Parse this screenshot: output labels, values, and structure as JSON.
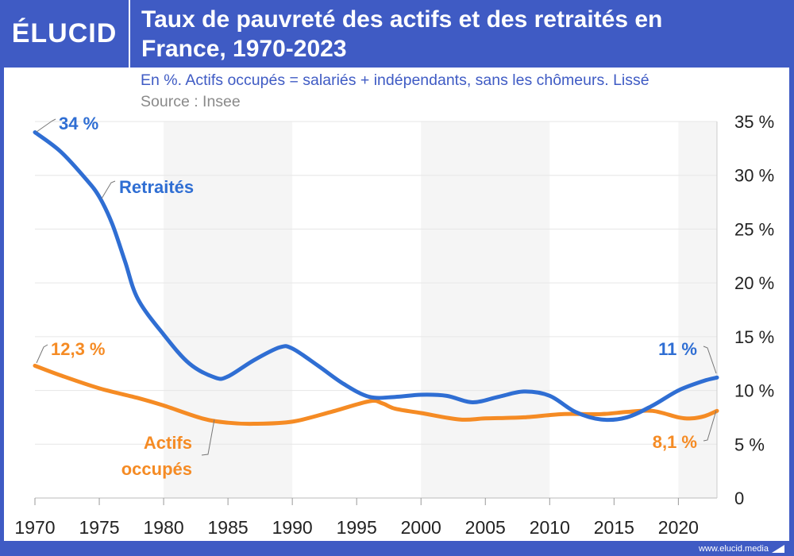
{
  "brand": {
    "logo": "ÉLUCID",
    "footer": "www.elucid.media"
  },
  "chart_data": {
    "type": "line",
    "title": "Taux de pauvreté des actifs et des retraités en France, 1970-2023",
    "subtitle": "En %. Actifs occupés = salariés + indépendants, sans les chômeurs. Lissé",
    "source": "Source : Insee",
    "xlim": [
      1970,
      2023
    ],
    "ylim": [
      0,
      35
    ],
    "x_ticks": [
      1970,
      1975,
      1980,
      1985,
      1990,
      1995,
      2000,
      2005,
      2010,
      2015,
      2020
    ],
    "y_ticks": [
      {
        "v": 0,
        "label": "0"
      },
      {
        "v": 5,
        "label": "5 %"
      },
      {
        "v": 10,
        "label": "10 %"
      },
      {
        "v": 15,
        "label": "15 %"
      },
      {
        "v": 20,
        "label": "20 %"
      },
      {
        "v": 25,
        "label": "25 %"
      },
      {
        "v": 30,
        "label": "30 %"
      },
      {
        "v": 35,
        "label": "35 %"
      }
    ],
    "grid": true,
    "shaded_bands": [
      [
        1980,
        1990
      ],
      [
        2000,
        2010
      ],
      [
        2020,
        2023
      ]
    ],
    "series": [
      {
        "name": "Retraités",
        "label": "Retraités",
        "color": "#2f6ed3",
        "start_label": "34 %",
        "end_label": "11 %",
        "x": [
          1970,
          1972,
          1974,
          1975,
          1976,
          1977,
          1978,
          1980,
          1982,
          1984,
          1985,
          1987,
          1989,
          1990,
          1992,
          1994,
          1996,
          1998,
          2000,
          2002,
          2004,
          2006,
          2008,
          2010,
          2012,
          2014,
          2016,
          2018,
          2020,
          2022,
          2023
        ],
        "y": [
          34,
          32.2,
          29.6,
          28,
          25.5,
          22,
          18.5,
          15.2,
          12.5,
          11.2,
          11.3,
          12.8,
          14,
          13.9,
          12.3,
          10.6,
          9.4,
          9.4,
          9.6,
          9.5,
          8.9,
          9.4,
          9.9,
          9.5,
          8,
          7.3,
          7.5,
          8.6,
          10,
          10.9,
          11.2
        ]
      },
      {
        "name": "Actifs occupés",
        "label1": "Actifs",
        "label2": "occupés",
        "color": "#f58b24",
        "start_label": "12,3 %",
        "end_label": "8,1 %",
        "x": [
          1970,
          1972,
          1975,
          1978,
          1980,
          1983,
          1985,
          1987,
          1990,
          1993,
          1996,
          1997,
          1998,
          2000,
          2003,
          2005,
          2008,
          2011,
          2014,
          2016,
          2018,
          2020,
          2021,
          2022,
          2023
        ],
        "y": [
          12.3,
          11.4,
          10.2,
          9.3,
          8.6,
          7.4,
          7.0,
          6.9,
          7.1,
          8.0,
          9.0,
          8.8,
          8.3,
          7.9,
          7.3,
          7.4,
          7.5,
          7.8,
          7.8,
          8.0,
          8.1,
          7.5,
          7.4,
          7.6,
          8.1
        ]
      }
    ]
  }
}
